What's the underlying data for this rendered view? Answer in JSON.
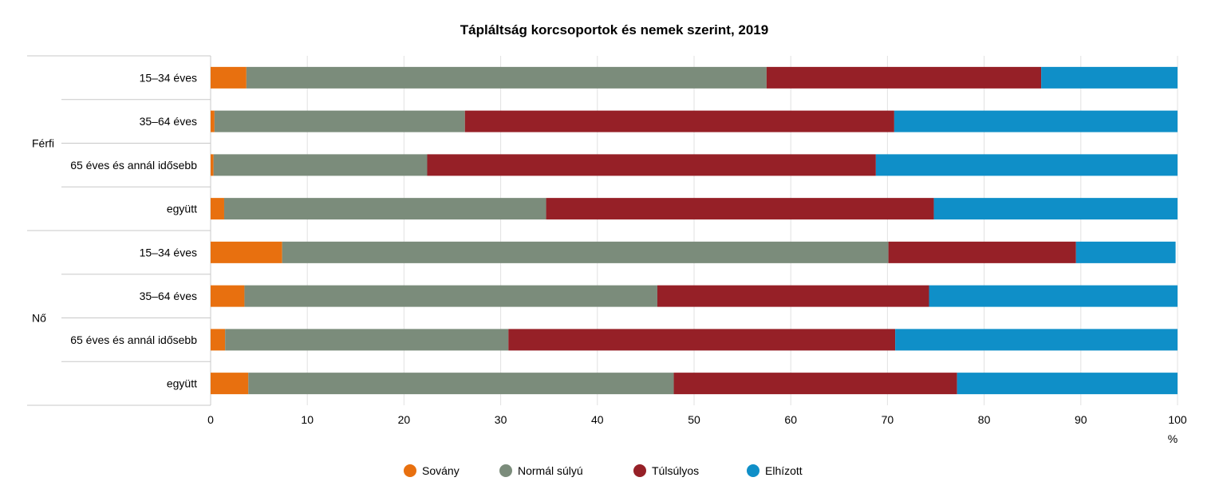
{
  "chart_data": {
    "type": "bar",
    "orientation": "horizontal",
    "stacked": true,
    "title": "Tápláltság korcsoportok és nemek szerint, 2019",
    "xlabel": "%",
    "xlim": [
      0,
      100
    ],
    "xticks": [
      "0",
      "10",
      "20",
      "30",
      "40",
      "50",
      "60",
      "70",
      "80",
      "90",
      "100"
    ],
    "grid": true,
    "legend_position": "bottom",
    "groups": [
      {
        "label": "Férfi",
        "categories": [
          "15–34 éves",
          "35–64 éves",
          "65 éves és annál idősebb",
          "együtt"
        ]
      },
      {
        "label": "Nő",
        "categories": [
          "15–34 éves",
          "35–64 éves",
          "65 éves és annál idősebb",
          "együtt"
        ]
      }
    ],
    "series": [
      {
        "name": "Sovány",
        "color": "#e8700f",
        "values": [
          3.7,
          0.4,
          0.3,
          1.4,
          7.4,
          3.5,
          1.5,
          3.9
        ]
      },
      {
        "name": "Normál súlyú",
        "color": "#7b8c7b",
        "values": [
          53.8,
          25.9,
          22.1,
          33.3,
          62.7,
          42.7,
          29.3,
          44.0
        ]
      },
      {
        "name": "Túlsúlyos",
        "color": "#962027",
        "values": [
          28.4,
          44.4,
          46.4,
          40.1,
          19.4,
          28.1,
          40.0,
          29.3
        ]
      },
      {
        "name": "Elhízott",
        "color": "#0f8fc8",
        "values": [
          14.1,
          29.3,
          31.2,
          25.2,
          10.3,
          25.7,
          29.2,
          22.8
        ]
      }
    ]
  }
}
